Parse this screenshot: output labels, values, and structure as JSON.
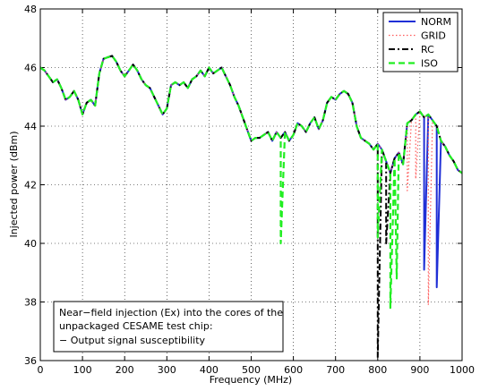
{
  "chart_data": {
    "type": "line",
    "xlabel": "Frequency (MHz)",
    "ylabel": "Injected power (dBm)",
    "xlim": [
      0,
      1000
    ],
    "ylim": [
      36,
      48
    ],
    "xticks": [
      0,
      100,
      200,
      300,
      400,
      500,
      600,
      700,
      800,
      900,
      1000
    ],
    "yticks": [
      36,
      38,
      40,
      42,
      44,
      46,
      48
    ],
    "grid": true,
    "legend_position": "top-right",
    "annotation": [
      "Near−field injection (Ex) into the cores of the",
      "unpackaged CESAME test chip:",
      "− Output signal susceptibility"
    ],
    "base_x": [
      0,
      10,
      20,
      30,
      40,
      50,
      60,
      70,
      80,
      90,
      100,
      110,
      120,
      130,
      140,
      150,
      160,
      170,
      180,
      190,
      200,
      210,
      220,
      230,
      240,
      250,
      260,
      270,
      280,
      290,
      300,
      310,
      320,
      330,
      340,
      350,
      360,
      370,
      380,
      390,
      400,
      410,
      420,
      430,
      440,
      450,
      460,
      470,
      480,
      490,
      500,
      510,
      520,
      530,
      540,
      550,
      560,
      570,
      580,
      590,
      600,
      610,
      620,
      630,
      640,
      650,
      660,
      670,
      680,
      690,
      700,
      710,
      720,
      730,
      740,
      750,
      760,
      770,
      780,
      790,
      800,
      810,
      820,
      830,
      840,
      850,
      860,
      870,
      880,
      890,
      900,
      910,
      920,
      930,
      940,
      950,
      960,
      970,
      980,
      990,
      1000
    ],
    "base_y": [
      46.0,
      45.9,
      45.7,
      45.5,
      45.6,
      45.3,
      44.9,
      45.0,
      45.2,
      44.9,
      44.4,
      44.8,
      44.9,
      44.7,
      45.8,
      46.3,
      46.35,
      46.4,
      46.2,
      45.9,
      45.7,
      45.9,
      46.1,
      45.9,
      45.6,
      45.4,
      45.3,
      45.0,
      44.7,
      44.4,
      44.6,
      45.4,
      45.5,
      45.4,
      45.5,
      45.3,
      45.6,
      45.7,
      45.9,
      45.7,
      46.0,
      45.8,
      45.9,
      46.0,
      45.7,
      45.4,
      45.0,
      44.7,
      44.3,
      43.9,
      43.5,
      43.6,
      43.6,
      43.7,
      43.8,
      43.5,
      43.8,
      43.6,
      43.8,
      43.5,
      43.7,
      44.1,
      44.0,
      43.8,
      44.1,
      44.3,
      43.9,
      44.2,
      44.8,
      45.0,
      44.9,
      45.1,
      45.2,
      45.1,
      44.8,
      44.0,
      43.6,
      43.5,
      43.4,
      43.2,
      43.4,
      43.2,
      42.8,
      42.4,
      42.9,
      43.1,
      42.7,
      44.1,
      44.2,
      44.4,
      44.5,
      44.3,
      44.4,
      44.2,
      44.0,
      43.5,
      43.3,
      43.0,
      42.8,
      42.5,
      42.4
    ],
    "series": [
      {
        "name": "NORM",
        "color": "#1f2fd6",
        "style": "solid",
        "width": 2,
        "dips": [
          [
            910,
            39.1
          ],
          [
            940,
            38.5
          ]
        ]
      },
      {
        "name": "GRID",
        "color": "#ff5a5a",
        "style": "dotted",
        "width": 1.2,
        "dips": [
          [
            870,
            41.8
          ],
          [
            890,
            42.2
          ],
          [
            920,
            37.9
          ]
        ]
      },
      {
        "name": "RC",
        "color": "#000000",
        "style": "dashdot",
        "width": 2,
        "dips": [
          [
            800,
            36.1
          ],
          [
            820,
            40.0
          ]
        ]
      },
      {
        "name": "ISO",
        "color": "#22ee22",
        "style": "dashed",
        "width": 2.2,
        "dips": [
          [
            570,
            40.0
          ],
          [
            800,
            40.2
          ],
          [
            830,
            37.8
          ],
          [
            845,
            38.8
          ]
        ]
      }
    ]
  }
}
